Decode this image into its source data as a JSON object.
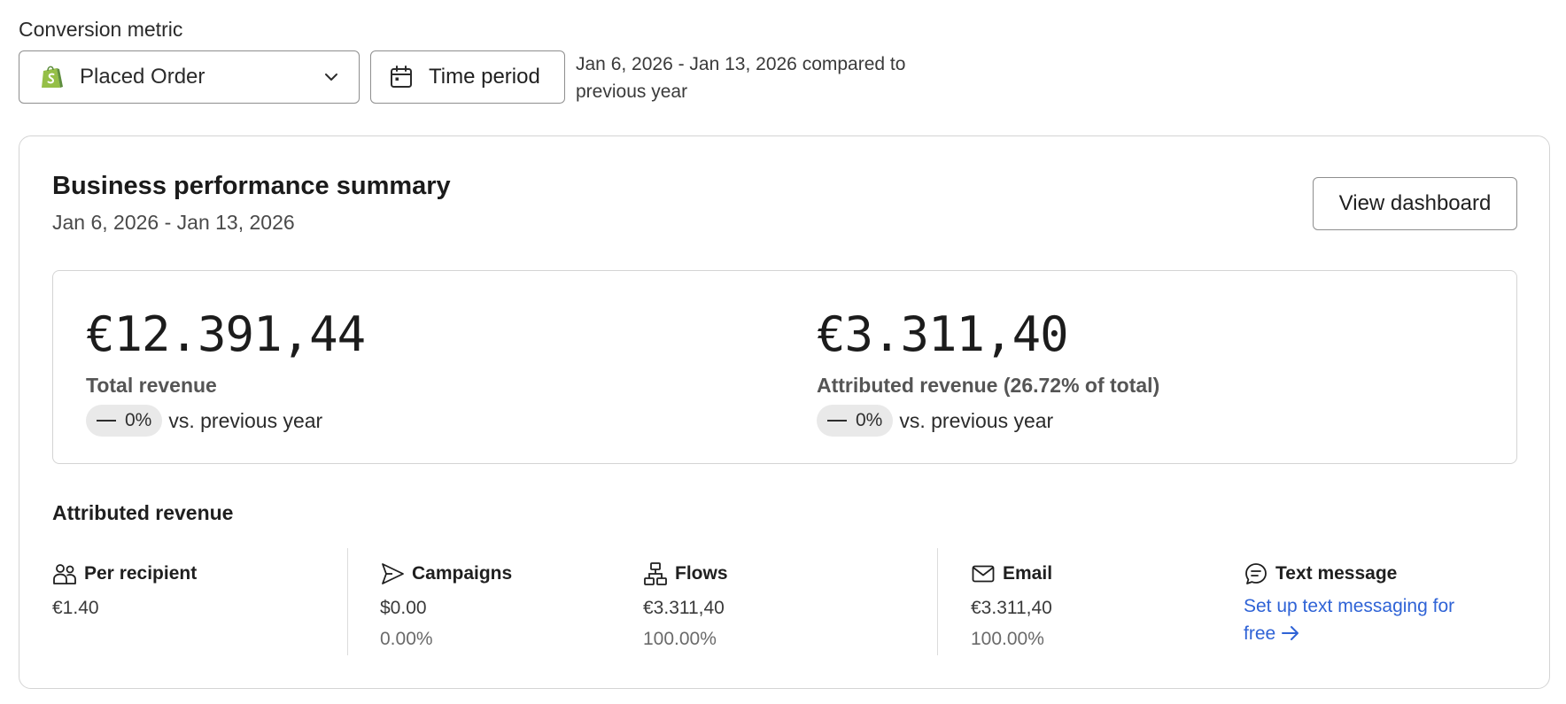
{
  "filters": {
    "metric_label": "Conversion metric",
    "metric_value": "Placed Order",
    "metric_icon": "shopify-icon",
    "time_button": "Time period",
    "range_text": "Jan 6, 2026 - Jan 13, 2026 compared to previous year"
  },
  "summary": {
    "title": "Business performance summary",
    "subtitle": "Jan 6, 2026 - Jan 13, 2026",
    "view_button": "View dashboard",
    "total": {
      "amount": "€12.391,44",
      "label": "Total revenue",
      "change": "0%",
      "vs": "vs. previous year"
    },
    "attributed": {
      "amount": "€3.311,40",
      "label": "Attributed revenue (26.72% of total)",
      "change": "0%",
      "vs": "vs. previous year"
    }
  },
  "attributed_revenue": {
    "heading": "Attributed revenue",
    "per_recipient": {
      "label": "Per recipient",
      "value": "€1.40",
      "icon": "people-icon"
    },
    "campaigns": {
      "label": "Campaigns",
      "value": "$0.00",
      "percent": "0.00%",
      "icon": "send-icon"
    },
    "flows": {
      "label": "Flows",
      "value": "€3.311,40",
      "percent": "100.00%",
      "icon": "flow-icon"
    },
    "email": {
      "label": "Email",
      "value": "€3.311,40",
      "percent": "100.00%",
      "icon": "mail-icon"
    },
    "text_message": {
      "label": "Text message",
      "link": "Set up text messaging for free",
      "icon": "chat-icon"
    }
  },
  "colors": {
    "link": "#2f63d6",
    "shopify_green": "#95bf47",
    "border": "#d4d4d4",
    "pill_bg": "#e9e9e9"
  }
}
